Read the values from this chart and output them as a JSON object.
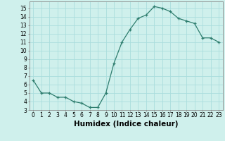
{
  "x": [
    0,
    1,
    2,
    3,
    4,
    5,
    6,
    7,
    8,
    9,
    10,
    11,
    12,
    13,
    14,
    15,
    16,
    17,
    18,
    19,
    20,
    21,
    22,
    23
  ],
  "y": [
    6.5,
    5.0,
    5.0,
    4.5,
    4.5,
    4.0,
    3.8,
    3.3,
    3.3,
    5.0,
    8.5,
    11.0,
    12.5,
    13.8,
    14.2,
    15.2,
    15.0,
    14.6,
    13.8,
    13.5,
    13.2,
    11.5,
    11.5,
    11.0
  ],
  "line_color": "#2e7d6e",
  "marker": "+",
  "bg_color": "#cff0ec",
  "grid_color": "#aadddd",
  "xlabel": "Humidex (Indice chaleur)",
  "xlim": [
    -0.5,
    23.5
  ],
  "ylim": [
    3,
    15.8
  ],
  "yticks": [
    3,
    4,
    5,
    6,
    7,
    8,
    9,
    10,
    11,
    12,
    13,
    14,
    15
  ],
  "xticks": [
    0,
    1,
    2,
    3,
    4,
    5,
    6,
    7,
    8,
    9,
    10,
    11,
    12,
    13,
    14,
    15,
    16,
    17,
    18,
    19,
    20,
    21,
    22,
    23
  ],
  "tick_fontsize": 5.5,
  "label_fontsize": 7.5
}
